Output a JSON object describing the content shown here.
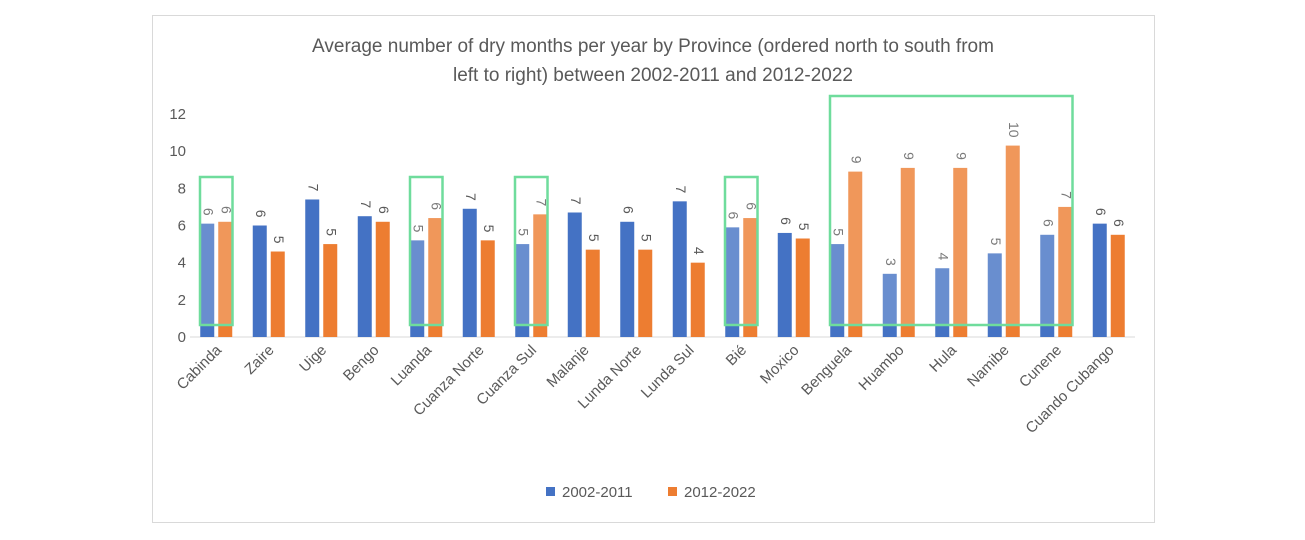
{
  "chart_data": {
    "type": "bar",
    "title_lines": [
      "Average number of dry months per year by Province (ordered north to south from",
      "left to right) between 2002-2011 and 2012-2022"
    ],
    "categories": [
      "Cabinda",
      "Zaire",
      "Uige",
      "Bengo",
      "Luanda",
      "Cuanza Norte",
      "Cuanza Sul",
      "Malanje",
      "Lunda Norte",
      "Lunda Sul",
      "Bié",
      "Moxico",
      "Benguela",
      "Huambo",
      "Hula",
      "Namibe",
      "Cunene",
      "Cuando Cubango"
    ],
    "series": [
      {
        "name": "2002-2011",
        "color": "#4472c4",
        "values": [
          6.1,
          6.0,
          7.4,
          6.5,
          5.2,
          6.9,
          5.0,
          6.7,
          6.2,
          7.3,
          5.9,
          5.6,
          5.0,
          3.4,
          3.7,
          4.5,
          5.5,
          6.1
        ],
        "labels": [
          "6",
          "6",
          "7",
          "7",
          "5",
          "7",
          "5",
          "7",
          "6",
          "7",
          "6",
          "6",
          "5",
          "3",
          "4",
          "5",
          "6",
          "6"
        ]
      },
      {
        "name": "2012-2022",
        "color": "#ed7d31",
        "values": [
          6.2,
          4.6,
          5.0,
          6.2,
          6.4,
          5.2,
          6.6,
          4.7,
          4.7,
          4.0,
          6.4,
          5.3,
          8.9,
          9.1,
          9.1,
          10.3,
          7.0,
          5.5
        ],
        "labels": [
          "6",
          "5",
          "5",
          "6",
          "6",
          "5",
          "7",
          "5",
          "5",
          "4",
          "6",
          "5",
          "9",
          "9",
          "9",
          "10",
          "7",
          "6"
        ]
      }
    ],
    "ylim": [
      0,
      12
    ],
    "yticks": [
      0,
      2,
      4,
      6,
      8,
      10,
      12
    ],
    "grid": false,
    "legend": "bottom",
    "highlight_color": "#6fdc9c",
    "highlighted_groups": [
      [
        "Cabinda"
      ],
      [
        "Luanda"
      ],
      [
        "Cuanza Sul"
      ],
      [
        "Bié"
      ],
      [
        "Benguela",
        "Huambo",
        "Hula",
        "Namibe",
        "Cunene"
      ]
    ]
  }
}
